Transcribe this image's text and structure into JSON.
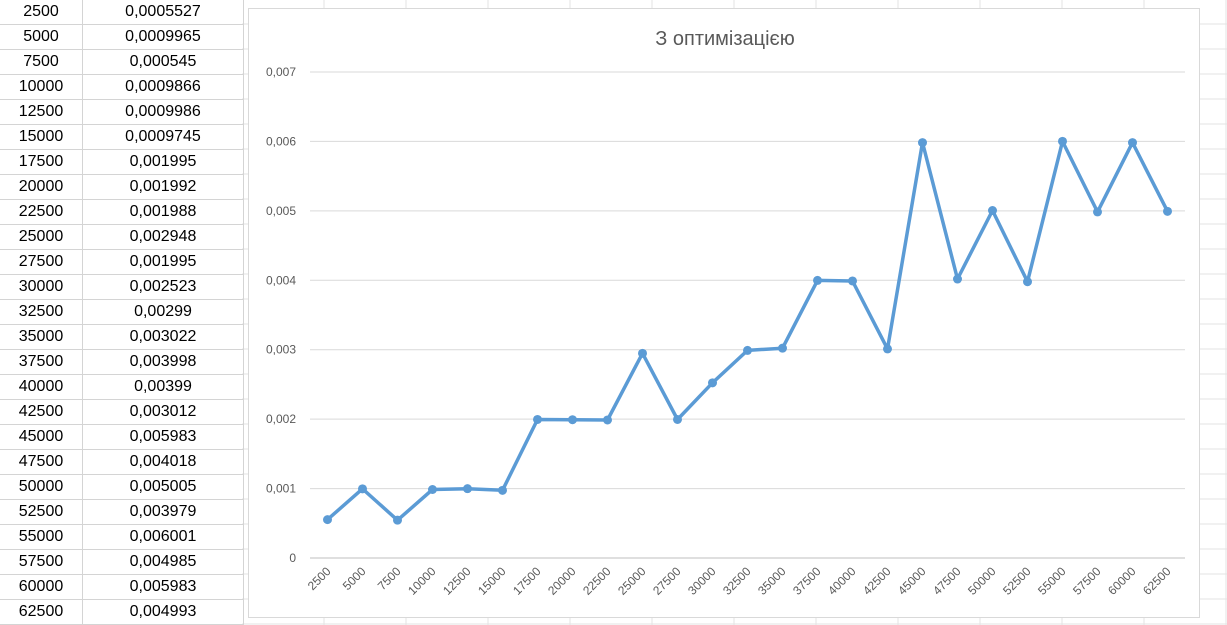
{
  "sheet": {
    "rows": [
      {
        "n": "2500",
        "t": "0,0005527"
      },
      {
        "n": "5000",
        "t": "0,0009965"
      },
      {
        "n": "7500",
        "t": "0,000545"
      },
      {
        "n": "10000",
        "t": "0,0009866"
      },
      {
        "n": "12500",
        "t": "0,0009986"
      },
      {
        "n": "15000",
        "t": "0,0009745"
      },
      {
        "n": "17500",
        "t": "0,001995"
      },
      {
        "n": "20000",
        "t": "0,001992"
      },
      {
        "n": "22500",
        "t": "0,001988"
      },
      {
        "n": "25000",
        "t": "0,002948"
      },
      {
        "n": "27500",
        "t": "0,001995"
      },
      {
        "n": "30000",
        "t": "0,002523"
      },
      {
        "n": "32500",
        "t": "0,00299"
      },
      {
        "n": "35000",
        "t": "0,003022"
      },
      {
        "n": "37500",
        "t": "0,003998"
      },
      {
        "n": "40000",
        "t": "0,00399"
      },
      {
        "n": "42500",
        "t": "0,003012"
      },
      {
        "n": "45000",
        "t": "0,005983"
      },
      {
        "n": "47500",
        "t": "0,004018"
      },
      {
        "n": "50000",
        "t": "0,005005"
      },
      {
        "n": "52500",
        "t": "0,003979"
      },
      {
        "n": "55000",
        "t": "0,006001"
      },
      {
        "n": "57500",
        "t": "0,004985"
      },
      {
        "n": "60000",
        "t": "0,005983"
      },
      {
        "n": "62500",
        "t": "0,004993"
      }
    ]
  },
  "chart_data": {
    "type": "line",
    "title": "З оптимізацією",
    "xlabel": "",
    "ylabel": "",
    "categories": [
      "2500",
      "5000",
      "7500",
      "10000",
      "12500",
      "15000",
      "17500",
      "20000",
      "22500",
      "25000",
      "27500",
      "30000",
      "32500",
      "35000",
      "37500",
      "40000",
      "42500",
      "45000",
      "47500",
      "50000",
      "52500",
      "55000",
      "57500",
      "60000",
      "62500"
    ],
    "series": [
      {
        "values": [
          0.0005527,
          0.0009965,
          0.000545,
          0.0009866,
          0.0009986,
          0.0009745,
          0.001995,
          0.001992,
          0.001988,
          0.002948,
          0.001995,
          0.002523,
          0.00299,
          0.003022,
          0.003998,
          0.00399,
          0.003012,
          0.005983,
          0.004018,
          0.005005,
          0.003979,
          0.006001,
          0.004985,
          0.005983,
          0.004993
        ],
        "color": "#5b9bd5"
      }
    ],
    "ylim": [
      0,
      0.007
    ],
    "yticks": [
      "0",
      "0,001",
      "0,002",
      "0,003",
      "0,004",
      "0,005",
      "0,006",
      "0,007"
    ],
    "grid": true,
    "legend": "none"
  }
}
